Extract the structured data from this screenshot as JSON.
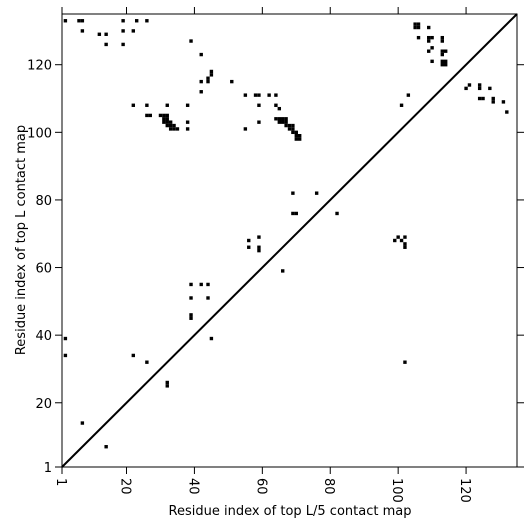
{
  "chart_data": {
    "type": "scatter",
    "title": "",
    "xlabel": "Residue index of top L/5 contact map",
    "ylabel": "Residue index of top L contact map",
    "xlim": [
      1,
      135
    ],
    "ylim": [
      1,
      135
    ],
    "x_ticks": [
      1,
      20,
      40,
      60,
      80,
      100,
      120
    ],
    "y_ticks": [
      1,
      20,
      40,
      60,
      80,
      100,
      120
    ],
    "grid": false,
    "diagonal": true,
    "colors": {
      "marker": "#000000",
      "diagonal": "#000000",
      "frame": "#000000"
    },
    "lower_points": [
      [
        7,
        14
      ],
      [
        14,
        7
      ],
      [
        26,
        32
      ],
      [
        32,
        26
      ],
      [
        2,
        34
      ],
      [
        2,
        39
      ],
      [
        22,
        34
      ],
      [
        32,
        25
      ],
      [
        39,
        45
      ],
      [
        39,
        46
      ],
      [
        39,
        51
      ],
      [
        39,
        55
      ],
      [
        42,
        55
      ],
      [
        44,
        55
      ],
      [
        44,
        51
      ],
      [
        45,
        39
      ],
      [
        56,
        66
      ],
      [
        56,
        68
      ],
      [
        59,
        65
      ],
      [
        59,
        66
      ],
      [
        59,
        69
      ],
      [
        66,
        59
      ],
      [
        69,
        76
      ],
      [
        70,
        76
      ],
      [
        69,
        82
      ],
      [
        76,
        82
      ],
      [
        82,
        76
      ],
      [
        99,
        68
      ],
      [
        100,
        69
      ],
      [
        101,
        68
      ],
      [
        102,
        66
      ],
      [
        102,
        67
      ],
      [
        102,
        69
      ],
      [
        102,
        32
      ]
    ],
    "upper_points": [
      [
        2,
        133
      ],
      [
        6,
        133
      ],
      [
        7,
        133
      ],
      [
        7,
        130
      ],
      [
        12,
        129
      ],
      [
        14,
        129
      ],
      [
        14,
        126
      ],
      [
        19,
        133
      ],
      [
        19,
        130
      ],
      [
        19,
        126
      ],
      [
        22,
        130
      ],
      [
        23,
        133
      ],
      [
        26,
        133
      ],
      [
        22,
        108
      ],
      [
        26,
        108
      ],
      [
        26,
        105
      ],
      [
        27,
        105
      ],
      [
        30,
        105
      ],
      [
        31,
        105
      ],
      [
        32,
        105
      ],
      [
        31,
        104
      ],
      [
        32,
        104
      ],
      [
        31,
        103
      ],
      [
        32,
        103
      ],
      [
        33,
        103
      ],
      [
        32,
        102
      ],
      [
        33,
        102
      ],
      [
        34,
        102
      ],
      [
        33,
        101
      ],
      [
        34,
        101
      ],
      [
        35,
        101
      ],
      [
        32,
        108
      ],
      [
        38,
        108
      ],
      [
        38,
        103
      ],
      [
        38,
        101
      ],
      [
        39,
        127
      ],
      [
        42,
        123
      ],
      [
        42,
        115
      ],
      [
        42,
        112
      ],
      [
        44,
        115
      ],
      [
        44,
        116
      ],
      [
        45,
        117
      ],
      [
        45,
        118
      ],
      [
        51,
        115
      ],
      [
        55,
        111
      ],
      [
        55,
        101
      ],
      [
        58,
        111
      ],
      [
        59,
        111
      ],
      [
        59,
        108
      ],
      [
        59,
        103
      ],
      [
        62,
        111
      ],
      [
        64,
        111
      ],
      [
        64,
        108
      ],
      [
        65,
        107
      ],
      [
        64,
        104
      ],
      [
        65,
        104
      ],
      [
        66,
        104
      ],
      [
        67,
        104
      ],
      [
        65,
        103
      ],
      [
        66,
        103
      ],
      [
        67,
        103
      ],
      [
        67,
        102
      ],
      [
        68,
        102
      ],
      [
        69,
        102
      ],
      [
        68,
        101
      ],
      [
        69,
        101
      ],
      [
        69,
        100
      ],
      [
        70,
        100
      ],
      [
        70,
        99
      ],
      [
        71,
        99
      ],
      [
        70,
        98
      ],
      [
        71,
        98
      ],
      [
        101,
        108
      ],
      [
        103,
        111
      ],
      [
        105,
        132
      ],
      [
        106,
        132
      ],
      [
        105,
        131
      ],
      [
        106,
        131
      ],
      [
        106,
        128
      ],
      [
        109,
        131
      ],
      [
        109,
        128
      ],
      [
        110,
        128
      ],
      [
        109,
        127
      ],
      [
        109,
        124
      ],
      [
        110,
        125
      ],
      [
        110,
        121
      ],
      [
        113,
        128
      ],
      [
        113,
        127
      ],
      [
        113,
        124
      ],
      [
        114,
        124
      ],
      [
        113,
        123
      ],
      [
        113,
        121
      ],
      [
        114,
        121
      ],
      [
        113,
        120
      ],
      [
        114,
        120
      ],
      [
        120,
        113
      ],
      [
        121,
        114
      ],
      [
        124,
        114
      ],
      [
        124,
        113
      ],
      [
        124,
        110
      ],
      [
        125,
        110
      ],
      [
        127,
        113
      ],
      [
        128,
        110
      ],
      [
        128,
        109
      ],
      [
        131,
        109
      ],
      [
        132,
        106
      ]
    ]
  }
}
